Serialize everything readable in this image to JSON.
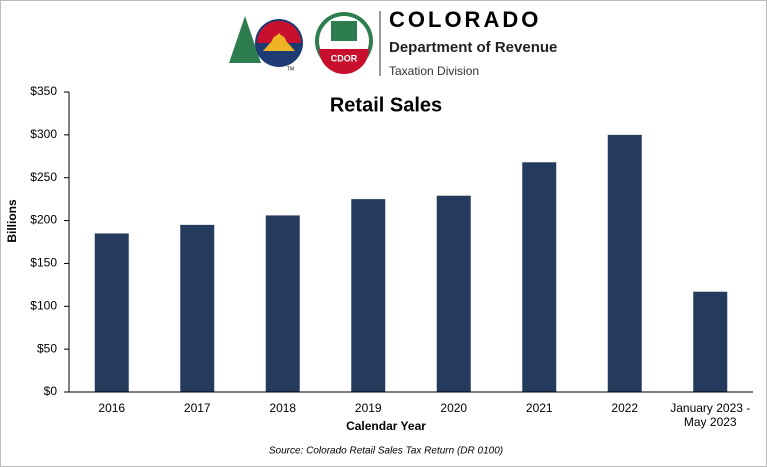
{
  "header": {
    "brand": "COLORADO",
    "department": "Department of Revenue",
    "division": "Taxation Division",
    "badge": "CDOR",
    "trademark": "TM"
  },
  "chart_data": {
    "type": "bar",
    "title": "Retail Sales",
    "x_label": "Calendar Year",
    "y_label": "Billions",
    "source": "Source: Colorado Retail Sales Tax Return (DR 0100)",
    "categories": [
      "2016",
      "2017",
      "2018",
      "2019",
      "2020",
      "2021",
      "2022",
      "January 2023 - May 2023"
    ],
    "values": [
      185,
      195,
      206,
      225,
      229,
      268,
      300,
      117
    ],
    "color": "#243b5e",
    "ylim": [
      0,
      350
    ],
    "yticks": [
      {
        "value": 0,
        "label": "$0"
      },
      {
        "value": 50,
        "label": "$50"
      },
      {
        "value": 100,
        "label": "$100"
      },
      {
        "value": 150,
        "label": "$150"
      },
      {
        "value": 200,
        "label": "$200"
      },
      {
        "value": 250,
        "label": "$250"
      },
      {
        "value": 300,
        "label": "$300"
      },
      {
        "value": 350,
        "label": "$350"
      }
    ],
    "grid": false
  }
}
